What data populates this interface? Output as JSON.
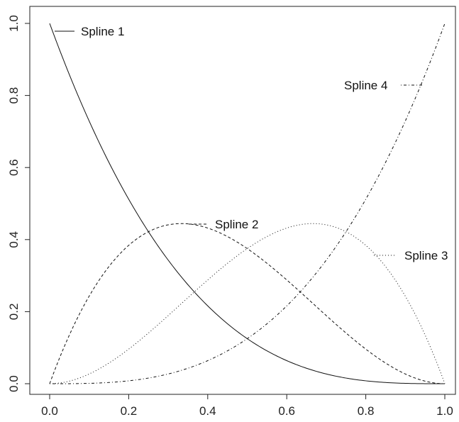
{
  "chart_data": {
    "type": "line",
    "title": "",
    "xlabel": "",
    "ylabel": "",
    "xlim": [
      0,
      1
    ],
    "ylim": [
      0,
      1
    ],
    "x_ticks": [
      "0.0",
      "0.2",
      "0.4",
      "0.6",
      "0.8",
      "1.0"
    ],
    "y_ticks": [
      "0.0",
      "0.2",
      "0.4",
      "0.6",
      "0.8",
      "1.0"
    ],
    "grid": false,
    "legend": "inline labels next to curves",
    "x": [
      0.0,
      0.05,
      0.1,
      0.15,
      0.2,
      0.25,
      0.3,
      0.35,
      0.4,
      0.45,
      0.5,
      0.55,
      0.6,
      0.65,
      0.7,
      0.75,
      0.8,
      0.85,
      0.9,
      0.95,
      1.0
    ],
    "series": [
      {
        "name": "Spline 1",
        "line_style": "solid",
        "values": [
          1.0,
          0.857,
          0.729,
          0.614,
          0.512,
          0.422,
          0.343,
          0.275,
          0.216,
          0.166,
          0.125,
          0.091,
          0.064,
          0.043,
          0.027,
          0.016,
          0.008,
          0.003,
          0.001,
          0.0,
          0.0
        ]
      },
      {
        "name": "Spline 2",
        "line_style": "dashed",
        "values": [
          0.0,
          0.135,
          0.243,
          0.325,
          0.384,
          0.422,
          0.441,
          0.444,
          0.432,
          0.408,
          0.375,
          0.334,
          0.288,
          0.239,
          0.189,
          0.141,
          0.096,
          0.057,
          0.027,
          0.007,
          0.0
        ]
      },
      {
        "name": "Spline 3",
        "line_style": "dotted",
        "values": [
          0.0,
          0.007,
          0.027,
          0.057,
          0.096,
          0.141,
          0.189,
          0.239,
          0.288,
          0.334,
          0.375,
          0.408,
          0.432,
          0.444,
          0.441,
          0.422,
          0.384,
          0.325,
          0.243,
          0.135,
          0.0
        ]
      },
      {
        "name": "Spline 4",
        "line_style": "dotdash",
        "values": [
          0.0,
          0.0,
          0.001,
          0.003,
          0.008,
          0.016,
          0.027,
          0.043,
          0.064,
          0.091,
          0.125,
          0.166,
          0.216,
          0.275,
          0.343,
          0.422,
          0.512,
          0.614,
          0.729,
          0.857,
          1.0
        ]
      }
    ]
  }
}
